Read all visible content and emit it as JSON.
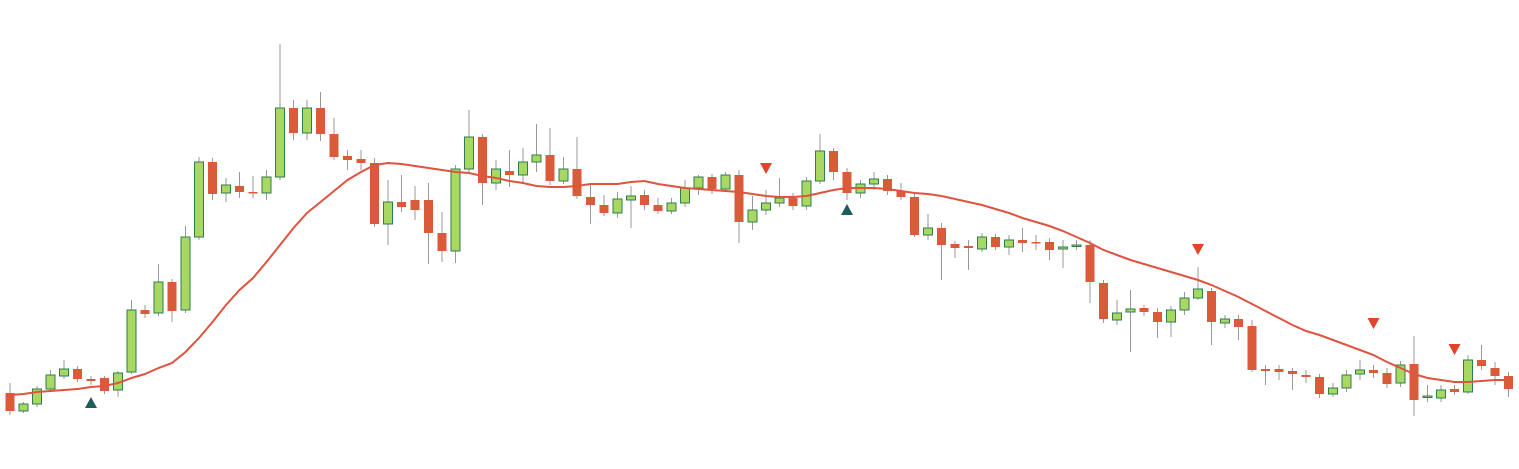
{
  "chart_data": {
    "type": "candlestick",
    "ylim": [
      0,
      469
    ],
    "up_color": "#a8d862",
    "up_border": "#2e7d4f",
    "down_color": "#d95b3a",
    "open": [
      76,
      58,
      65,
      80,
      93,
      100,
      90,
      91,
      79,
      97,
      159,
      156,
      187,
      159,
      232,
      307,
      276,
      283,
      277,
      276,
      292,
      361,
      336,
      361,
      335,
      313,
      310,
      306,
      245,
      267,
      269,
      269,
      236,
      218,
      300,
      332,
      286,
      298,
      294,
      307,
      314,
      288,
      300,
      272,
      264,
      256,
      269,
      274,
      264,
      258,
      266,
      281,
      292,
      280,
      294,
      247,
      259,
      266,
      271,
      263,
      288,
      318,
      297,
      276,
      285,
      290,
      278,
      272,
      234,
      241,
      225,
      223,
      220,
      232,
      222,
      229,
      227,
      227,
      220,
      223,
      224,
      186,
      149,
      157,
      161,
      157,
      147,
      159,
      171,
      178,
      146,
      150,
      143,
      100,
      100,
      98,
      94,
      92,
      75,
      81,
      95,
      99,
      96,
      86,
      105,
      72,
      71,
      80,
      77,
      109,
      101,
      93
    ],
    "high": [
      86,
      67,
      83,
      99,
      109,
      103,
      93,
      93,
      98,
      169,
      164,
      205,
      190,
      243,
      312,
      311,
      291,
      297,
      293,
      299,
      425,
      369,
      369,
      377,
      351,
      319,
      319,
      311,
      289,
      294,
      283,
      286,
      257,
      304,
      359,
      335,
      309,
      319,
      321,
      345,
      341,
      312,
      332,
      285,
      274,
      277,
      283,
      279,
      271,
      271,
      289,
      294,
      295,
      297,
      299,
      273,
      279,
      291,
      276,
      292,
      335,
      321,
      301,
      289,
      297,
      294,
      286,
      275,
      255,
      246,
      228,
      229,
      236,
      235,
      234,
      241,
      234,
      231,
      229,
      229,
      229,
      189,
      169,
      179,
      164,
      161,
      163,
      177,
      202,
      181,
      154,
      154,
      149,
      104,
      104,
      101,
      99,
      95,
      86,
      99,
      109,
      104,
      101,
      108,
      133,
      84,
      84,
      84,
      114,
      124,
      107,
      97
    ],
    "low": [
      54,
      56,
      62,
      77,
      90,
      87,
      84,
      75,
      72,
      95,
      151,
      153,
      147,
      156,
      229,
      269,
      267,
      271,
      271,
      269,
      289,
      329,
      329,
      328,
      309,
      299,
      299,
      242,
      224,
      257,
      249,
      205,
      207,
      206,
      297,
      264,
      279,
      282,
      287,
      297,
      284,
      285,
      270,
      245,
      253,
      251,
      241,
      259,
      255,
      255,
      262,
      274,
      275,
      277,
      226,
      239,
      254,
      262,
      259,
      259,
      285,
      289,
      269,
      271,
      279,
      274,
      269,
      232,
      229,
      189,
      211,
      199,
      217,
      219,
      214,
      217,
      219,
      209,
      201,
      219,
      166,
      146,
      144,
      117,
      153,
      131,
      132,
      154,
      169,
      124,
      141,
      129,
      97,
      84,
      89,
      79,
      86,
      71,
      72,
      77,
      89,
      91,
      81,
      82,
      53,
      67,
      67,
      74,
      75,
      99,
      84,
      72
    ],
    "close": [
      58,
      65,
      80,
      94,
      100,
      90,
      88,
      78,
      96,
      159,
      155,
      187,
      158,
      232,
      307,
      275,
      284,
      277,
      276,
      292,
      361,
      336,
      361,
      335,
      312,
      309,
      306,
      245,
      267,
      262,
      259,
      236,
      218,
      300,
      332,
      286,
      300,
      294,
      307,
      314,
      288,
      300,
      273,
      264,
      256,
      270,
      273,
      264,
      258,
      266,
      281,
      292,
      280,
      294,
      247,
      259,
      266,
      271,
      263,
      288,
      318,
      297,
      276,
      285,
      290,
      278,
      272,
      234,
      241,
      224,
      221,
      221,
      232,
      222,
      229,
      226,
      226,
      219,
      222,
      224,
      187,
      150,
      156,
      160,
      157,
      147,
      159,
      171,
      180,
      147,
      150,
      142,
      99,
      98,
      97,
      95,
      92,
      75,
      81,
      94,
      99,
      96,
      85,
      104,
      69,
      73,
      79,
      77,
      109,
      103,
      93,
      80
    ],
    "ma": {
      "color": "#e0533f",
      "values": [
        74,
        75,
        77,
        78,
        79,
        80,
        82,
        83,
        86,
        91,
        95,
        101,
        106,
        117,
        131,
        147,
        164,
        179,
        191,
        207,
        224,
        241,
        256,
        267,
        278,
        289,
        297,
        304,
        306,
        305,
        303,
        301,
        299,
        297,
        296,
        293,
        291,
        288,
        286,
        283,
        282,
        282,
        283,
        285,
        285,
        285,
        287,
        288,
        285,
        283,
        281,
        280,
        279,
        278,
        277,
        275,
        273,
        272,
        272,
        273,
        276,
        279,
        281,
        281,
        281,
        280,
        278,
        276,
        275,
        273,
        270,
        267,
        264,
        260,
        256,
        251,
        247,
        243,
        238,
        232,
        226,
        219,
        214,
        209,
        205,
        201,
        197,
        193,
        189,
        184,
        178,
        172,
        165,
        158,
        151,
        144,
        138,
        134,
        129,
        124,
        119,
        114,
        107,
        101,
        95,
        91,
        89,
        87,
        87,
        88,
        89,
        89
      ]
    },
    "buy_signals": {
      "color": "#1f5c5e",
      "x": [
        6,
        62
      ],
      "values": [
        66,
        259
      ]
    },
    "sell_signals": {
      "color": "#e3422b",
      "x": [
        56,
        88,
        101,
        107
      ],
      "values": [
        301,
        220,
        146,
        120
      ]
    }
  }
}
